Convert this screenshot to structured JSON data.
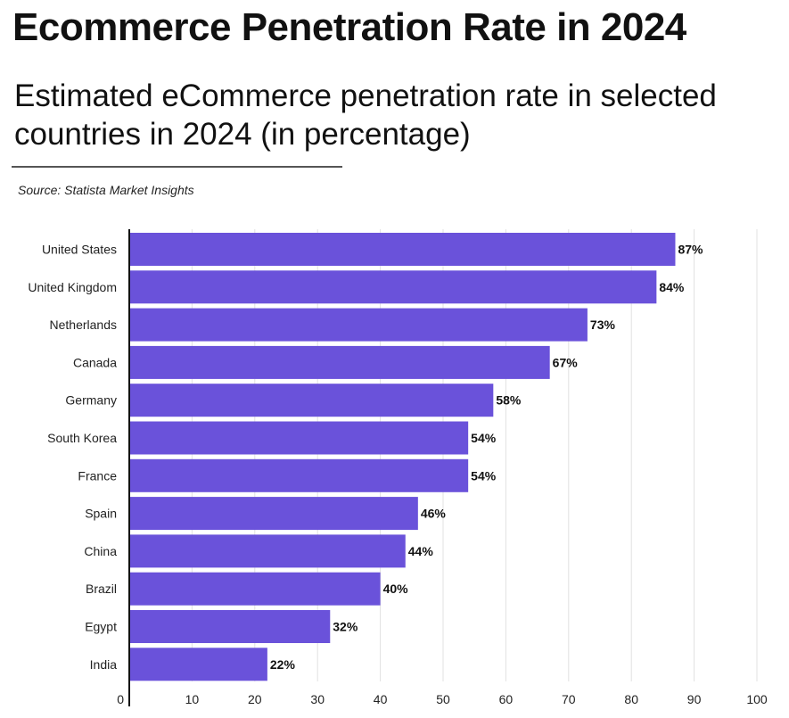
{
  "title": "Ecommerce Penetration Rate in 2024",
  "subtitle": "Estimated eCommerce penetration rate in selected countries in 2024 (in percentage)",
  "source": "Source: Statista Market Insights",
  "chart_data": {
    "type": "bar",
    "orientation": "horizontal",
    "title": "Ecommerce Penetration Rate in 2024",
    "xlabel": "",
    "ylabel": "",
    "xlim": [
      0,
      100
    ],
    "x_ticks": [
      0,
      10,
      20,
      30,
      40,
      50,
      60,
      70,
      80,
      90,
      100
    ],
    "grid": true,
    "bar_color": "#6A52DA",
    "categories": [
      "United States",
      "United Kingdom",
      "Netherlands",
      "Canada",
      "Germany",
      "South Korea",
      "France",
      "Spain",
      "China",
      "Brazil",
      "Egypt",
      "India"
    ],
    "values": [
      87,
      84,
      73,
      67,
      58,
      54,
      54,
      46,
      44,
      40,
      32,
      22
    ],
    "data_labels": [
      "87%",
      "84%",
      "73%",
      "67%",
      "58%",
      "54%",
      "54%",
      "46%",
      "44%",
      "40%",
      "32%",
      "22%"
    ]
  }
}
